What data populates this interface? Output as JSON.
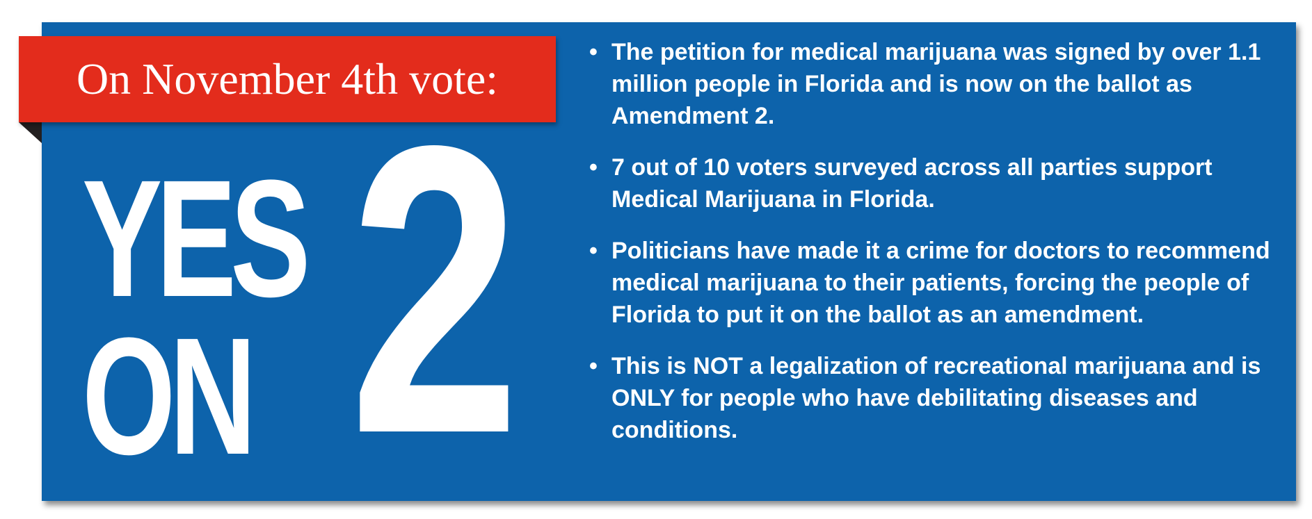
{
  "colors": {
    "panel_blue": "#0d63ab",
    "ribbon_red": "#e32c1c",
    "text_white": "#ffffff",
    "fold_dark": "#231f20"
  },
  "ribbon": {
    "text": "On November 4th vote:"
  },
  "headline": {
    "yes": "YES",
    "on": "ON",
    "number": "2"
  },
  "bullets": [
    {
      "text": "The petition for medical marijuana was signed by over 1.1 million people in Florida and is now on the ballot as Amendment 2."
    },
    {
      "text": "7 out of 10 voters surveyed across all parties support Medical Marijuana in Florida."
    },
    {
      "text": "Politicians have made it a crime for doctors to recommend medical marijuana to their patients, forcing the people of Florida to put it on the ballot as an amendment."
    },
    {
      "text": "This is NOT a legalization of recreational marijuana and is ONLY for people who have debilitating diseases and conditions."
    }
  ],
  "bullet_glyph": "•"
}
